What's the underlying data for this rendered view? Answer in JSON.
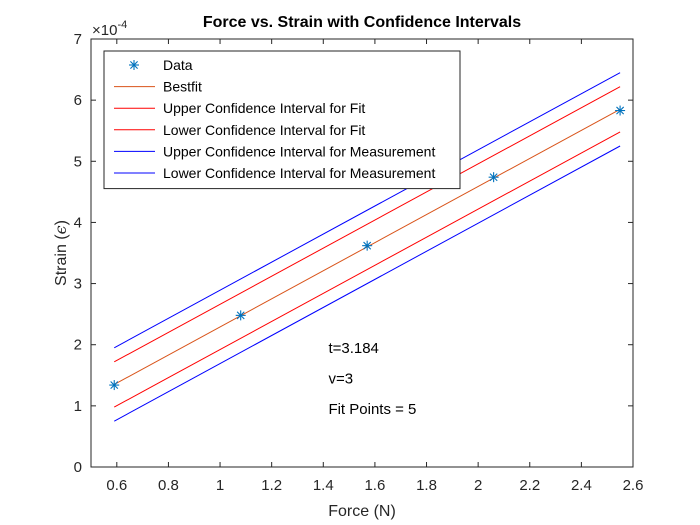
{
  "chart_data": {
    "type": "line",
    "title": "Force vs. Strain with Confidence Intervals",
    "xlabel": "Force (N)",
    "ylabel_text": "Strain (",
    "ylabel_symbol": "ϵ",
    "ylabel_close": ")",
    "exponent_prefix": "×10",
    "exponent_power": "-4",
    "xlim": [
      0.5,
      2.6
    ],
    "ylim": [
      0,
      7
    ],
    "xticks": [
      0.6,
      0.8,
      1.0,
      1.2,
      1.4,
      1.6,
      1.8,
      2.0,
      2.2,
      2.4,
      2.6
    ],
    "xtick_labels": [
      "0.6",
      "0.8",
      "1",
      "1.2",
      "1.4",
      "1.6",
      "1.8",
      "2",
      "2.2",
      "2.4",
      "2.6"
    ],
    "yticks": [
      0,
      1,
      2,
      3,
      4,
      5,
      6,
      7
    ],
    "ytick_labels": [
      "0",
      "1",
      "2",
      "3",
      "4",
      "5",
      "6",
      "7"
    ],
    "legend_position": "top-left",
    "grid": false,
    "data_points": {
      "name": "Data",
      "color": "#0072bd",
      "marker": "asterisk",
      "x": [
        0.59,
        1.08,
        1.57,
        2.06,
        2.55
      ],
      "y": [
        1.34,
        2.48,
        3.62,
        4.74,
        5.83
      ]
    },
    "series": [
      {
        "name": "Bestfit",
        "color": "#d95319",
        "x": [
          0.59,
          2.55
        ],
        "y": [
          1.35,
          5.85
        ]
      },
      {
        "name": "Upper Confidence Interval for Fit",
        "color": "#ff0000",
        "x": [
          0.59,
          2.55
        ],
        "y": [
          1.72,
          6.22
        ]
      },
      {
        "name": "Lower Confidence Interval for Fit",
        "color": "#ff0000",
        "x": [
          0.59,
          2.55
        ],
        "y": [
          0.98,
          5.48
        ]
      },
      {
        "name": "Upper Confidence Interval for Measurement",
        "color": "#0000ff",
        "x": [
          0.59,
          2.55
        ],
        "y": [
          1.95,
          6.45
        ]
      },
      {
        "name": "Lower Confidence Interval for Measurement",
        "color": "#0000ff",
        "x": [
          0.59,
          2.55
        ],
        "y": [
          0.75,
          5.25
        ]
      }
    ],
    "annotations": [
      {
        "text": "t=3.184",
        "x": 1.42,
        "y": 1.95
      },
      {
        "text": "v=3",
        "x": 1.42,
        "y": 1.45
      },
      {
        "text": "Fit Points = 5",
        "x": 1.42,
        "y": 0.95
      }
    ]
  }
}
